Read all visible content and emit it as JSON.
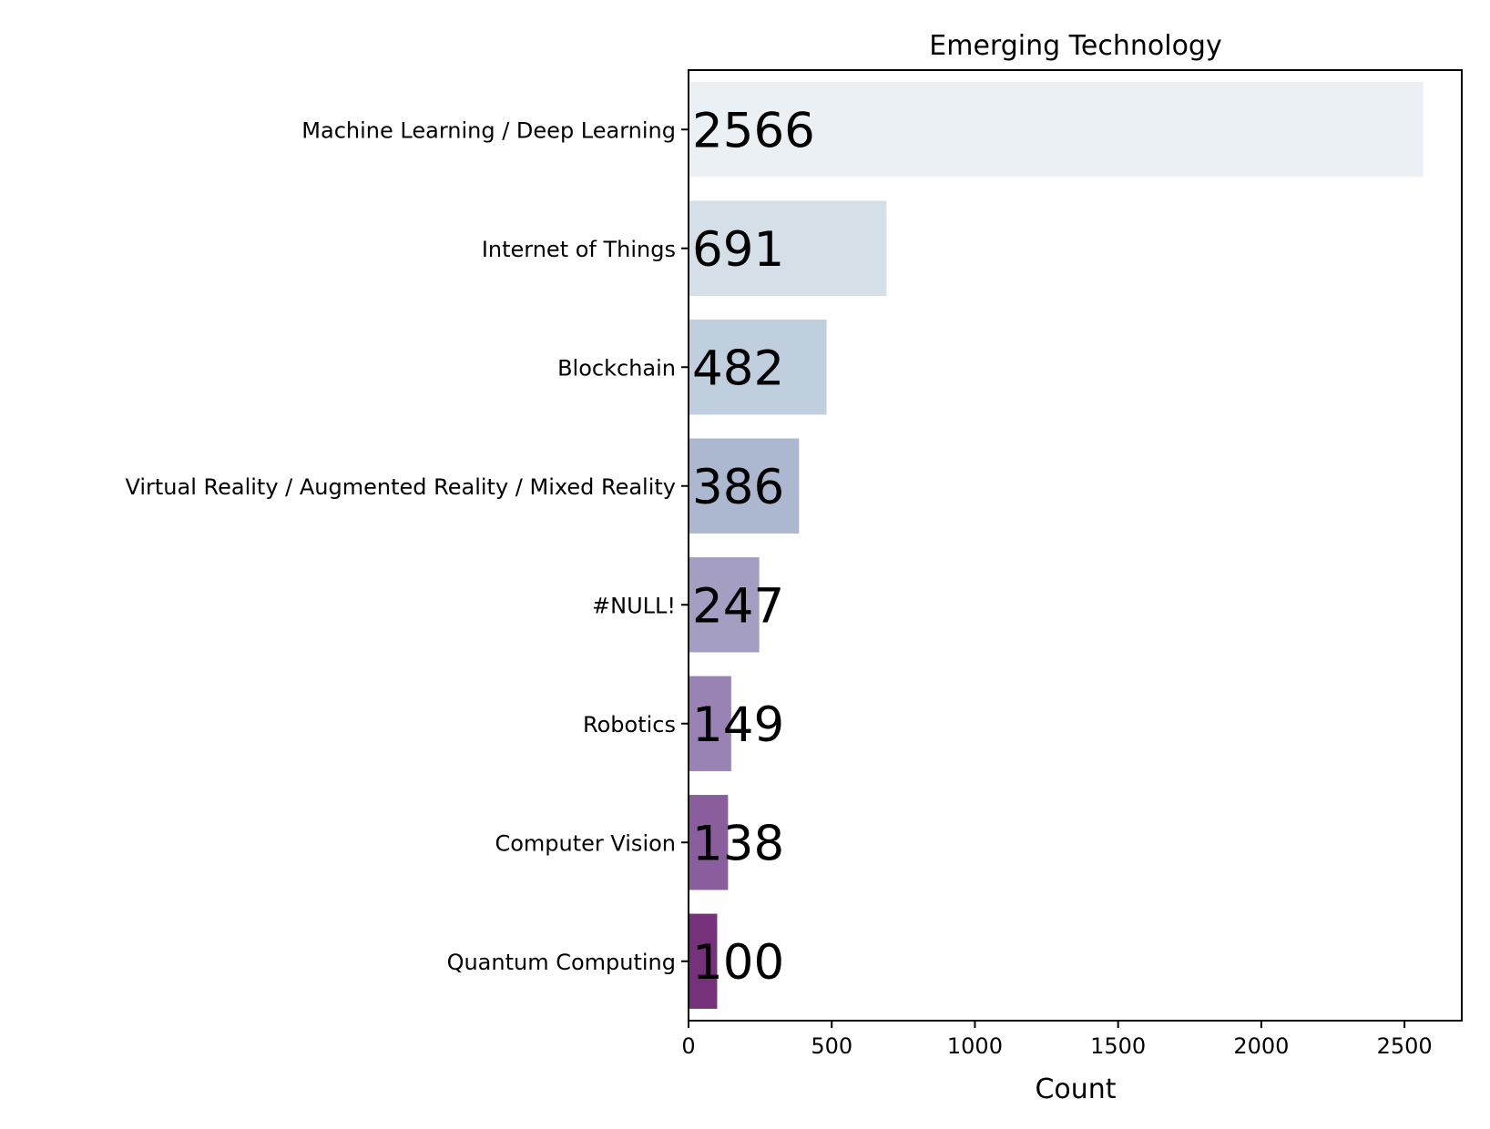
{
  "chart_data": {
    "type": "bar",
    "orientation": "horizontal",
    "title": "Emerging Technology",
    "xlabel": "Count",
    "ylabel": "",
    "categories": [
      "Machine Learning / Deep Learning",
      "Internet of Things",
      "Blockchain",
      "Virtual Reality / Augmented Reality / Mixed Reality",
      "#NULL!",
      "Robotics",
      "Computer Vision",
      "Quantum Computing"
    ],
    "values": [
      2566,
      691,
      482,
      386,
      247,
      149,
      138,
      100
    ],
    "data_labels": [
      "2566",
      "691",
      "482",
      "386",
      "247",
      "149",
      "138",
      "100"
    ],
    "colors": [
      "#ebf0f4",
      "#d5dfe8",
      "#bfcfde",
      "#abb8d0",
      "#a39ec2",
      "#9983b5",
      "#8a5d9c",
      "#75317a"
    ],
    "xlim": [
      0,
      2700
    ],
    "xticks": [
      0,
      500,
      1000,
      1500,
      2000,
      2500
    ],
    "xtick_labels": [
      "0",
      "500",
      "1000",
      "1500",
      "2000",
      "2500"
    ],
    "grid": false,
    "legend": "none"
  }
}
